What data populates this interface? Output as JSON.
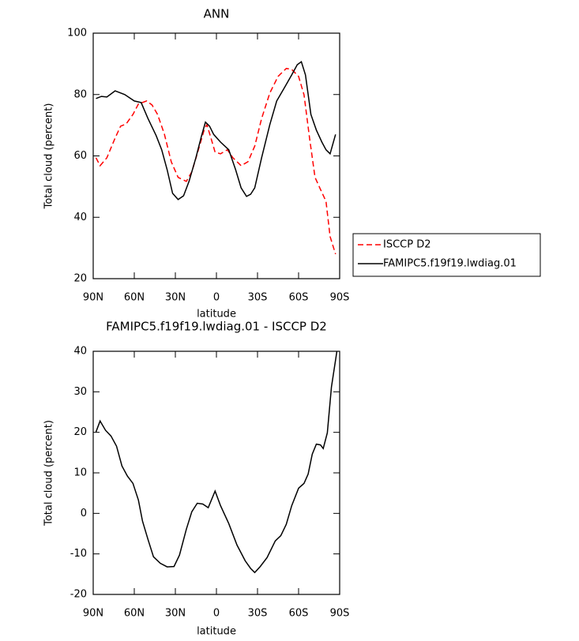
{
  "chart_data": [
    {
      "type": "line",
      "title": "ANN",
      "xlabel": "latitude",
      "ylabel": "Total cloud (percent)",
      "xlim": [
        90,
        -90
      ],
      "ylim": [
        20,
        100
      ],
      "xticks": [
        {
          "value": 90,
          "label": "90N"
        },
        {
          "value": 60,
          "label": "60N"
        },
        {
          "value": 30,
          "label": "30N"
        },
        0,
        {
          "value": -30,
          "label": "30S"
        },
        {
          "value": -60,
          "label": "60S"
        },
        {
          "value": -90,
          "label": "90S"
        }
      ],
      "yticks": [
        20,
        40,
        60,
        80,
        100
      ],
      "series": [
        {
          "name": "ISCCP D2",
          "color": "#ff0000",
          "linestyle": "dashed",
          "x": [
            88,
            85,
            80,
            74,
            70,
            66,
            61,
            57,
            51,
            47,
            43,
            38,
            33,
            28,
            22,
            18,
            14,
            9,
            7,
            4,
            1,
            -3,
            -8,
            -12,
            -18,
            -23,
            -28,
            -33,
            -39,
            -45,
            -51,
            -55,
            -60,
            -64,
            -68,
            -72,
            -76,
            -80,
            -83,
            -87
          ],
          "values": [
            59.4,
            56.8,
            59.4,
            65.8,
            69.7,
            70.4,
            73.5,
            76.9,
            77.9,
            76.6,
            73.5,
            67.1,
            58.1,
            53,
            51.7,
            54.8,
            60.7,
            68.4,
            70.2,
            65.8,
            61.2,
            60.7,
            62,
            59.4,
            56.8,
            58.1,
            63.2,
            72.2,
            80.5,
            85.9,
            88.5,
            88.2,
            85.9,
            79.9,
            65.8,
            53,
            49.1,
            45.2,
            33.7,
            28
          ]
        },
        {
          "name": "FAMIPC5.f19f19.lwdiag.01",
          "color": "#000000",
          "linestyle": "solid",
          "x": [
            88,
            84,
            80,
            74,
            67,
            60,
            55,
            50,
            44,
            40,
            36,
            32,
            28,
            24,
            20,
            15,
            11,
            8,
            5,
            2,
            -3,
            -9,
            -14,
            -18,
            -22,
            -25,
            -28,
            -33,
            -39,
            -44,
            -50,
            -55,
            -59,
            -62,
            -65,
            -69,
            -73,
            -77,
            -80,
            -83,
            -87
          ],
          "values": [
            78.7,
            79.4,
            79.2,
            81.2,
            80,
            77.9,
            77.4,
            72.2,
            66.6,
            62,
            55.5,
            47.8,
            45.8,
            47,
            51.7,
            59.4,
            66.3,
            71,
            69.7,
            67,
            64.5,
            62,
            55.5,
            49.6,
            46.8,
            47.5,
            49.6,
            59.4,
            70.2,
            77.9,
            82.5,
            86.4,
            89.7,
            90.7,
            86.4,
            73.5,
            68.4,
            64.5,
            62,
            60.7,
            67
          ]
        }
      ]
    },
    {
      "type": "line",
      "title": "FAMIPC5.f19f19.lwdiag.01 - ISCCP D2",
      "xlabel": "latitude",
      "ylabel": "Total cloud (percent)",
      "xlim": [
        90,
        -90
      ],
      "ylim": [
        -20,
        40
      ],
      "xticks": [
        {
          "value": 90,
          "label": "90N"
        },
        {
          "value": 60,
          "label": "60N"
        },
        {
          "value": 30,
          "label": "30N"
        },
        0,
        {
          "value": -30,
          "label": "30S"
        },
        {
          "value": -60,
          "label": "60S"
        },
        {
          "value": -90,
          "label": "90S"
        }
      ],
      "yticks": [
        -20,
        -10,
        0,
        10,
        20,
        30,
        40
      ],
      "series": [
        {
          "color": "#000000",
          "linestyle": "solid",
          "x": [
            88,
            85,
            81,
            77,
            73,
            69,
            65,
            61,
            57,
            54,
            50,
            46,
            41,
            36,
            31,
            27,
            22,
            18,
            14,
            10,
            6,
            1,
            -3,
            -9,
            -15,
            -21,
            -25,
            -28,
            -32,
            -37,
            -43,
            -47,
            -51,
            -55,
            -60,
            -64,
            -67,
            -70,
            -73,
            -76,
            -78,
            -81,
            -84,
            -88
          ],
          "values": [
            20.1,
            22.8,
            20.5,
            19.1,
            16.6,
            11.7,
            9.2,
            7.4,
            3.3,
            -1.9,
            -6.4,
            -10.7,
            -12.3,
            -13.2,
            -13.1,
            -10.3,
            -3.9,
            0.4,
            2.5,
            2.3,
            1.4,
            5.5,
            1.9,
            -2.5,
            -7.8,
            -11.7,
            -13.6,
            -14.6,
            -13.1,
            -10.9,
            -6.8,
            -5.5,
            -2.7,
            1.9,
            6.2,
            7.4,
            9.7,
            14.6,
            17.1,
            16.9,
            16,
            19.9,
            31.2,
            40
          ]
        }
      ]
    }
  ]
}
